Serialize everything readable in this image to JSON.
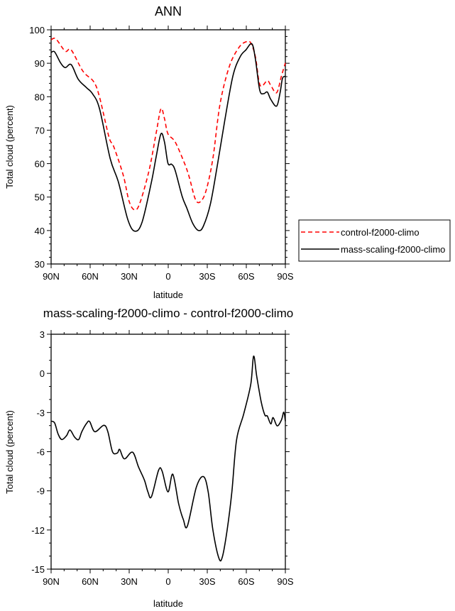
{
  "chart_data": [
    {
      "type": "line",
      "title": "ANN",
      "xlabel": "latitude",
      "ylabel": "Total cloud (percent)",
      "xlim": [
        90,
        -90
      ],
      "ylim": [
        30,
        100
      ],
      "x_ticks": [
        90,
        60,
        30,
        0,
        -30,
        -60,
        -90
      ],
      "x_tick_labels": [
        "90N",
        "60N",
        "30N",
        "0",
        "30S",
        "60S",
        "90S"
      ],
      "y_ticks": [
        30,
        40,
        50,
        60,
        70,
        80,
        90,
        100
      ],
      "y_tick_labels": [
        "30",
        "40",
        "50",
        "60",
        "70",
        "80",
        "90",
        "100"
      ],
      "grid": false,
      "legend_placement": "right",
      "series": [
        {
          "name": "control-f2000-climo",
          "color": "#ff0000",
          "dash": "dashed",
          "x": [
            90,
            86.4,
            79.1,
            74.6,
            65.5,
            57.3,
            52.8,
            45.5,
            41.9,
            34.6,
            30.1,
            25.9,
            21.9,
            14.7,
            9.2,
            5.6,
            2.9,
            0.2,
            -5.3,
            -12.5,
            -16.2,
            -20.7,
            -24.3,
            -28.9,
            -34.3,
            -39.8,
            -47.0,
            -54.3,
            -59.7,
            -63.4,
            -67.0,
            -70.6,
            -76.1,
            -78.8,
            -83.3,
            -87.0,
            -90
          ],
          "y": [
            97.0,
            97.3,
            93.6,
            94.0,
            87.6,
            84.5,
            79.9,
            67.9,
            65.1,
            56.6,
            48.8,
            46.2,
            48.1,
            58.0,
            69.3,
            76.4,
            73.5,
            68.9,
            66.5,
            60.1,
            55.9,
            49.5,
            48.5,
            51.7,
            61.5,
            77.8,
            89.1,
            94.7,
            96.4,
            96.1,
            91.9,
            83.4,
            84.8,
            83.4,
            81.2,
            86.2,
            90.1
          ]
        },
        {
          "name": "mass-scaling-f2000-climo",
          "color": "#000000",
          "dash": "solid",
          "x": [
            90,
            87.3,
            82.7,
            79.1,
            74.6,
            69.1,
            62.8,
            58.2,
            52.8,
            44.6,
            38.3,
            31.0,
            25.6,
            20.1,
            12.9,
            9.2,
            5.6,
            2.9,
            0.2,
            -2.6,
            -5.3,
            -10.7,
            -14.3,
            -18.9,
            -23.4,
            -27.1,
            -32.5,
            -38.0,
            -43.4,
            -49.7,
            -55.2,
            -59.7,
            -64.3,
            -67.0,
            -70.3,
            -73.3,
            -76.1,
            -78.8,
            -83.3,
            -86.0,
            -87.8,
            -90
          ],
          "y": [
            93.2,
            93.4,
            90.1,
            88.7,
            89.6,
            85.2,
            82.7,
            80.9,
            76.4,
            61.5,
            54.5,
            43.2,
            39.8,
            42.5,
            54.5,
            62.2,
            68.9,
            66.5,
            60.1,
            59.8,
            58.0,
            50.2,
            46.7,
            42.1,
            40.0,
            41.4,
            48.1,
            60.1,
            72.8,
            86.2,
            91.9,
            94.0,
            95.8,
            91.2,
            82.0,
            80.9,
            81.4,
            79.2,
            77.2,
            81.3,
            85.5,
            86.1
          ]
        }
      ]
    },
    {
      "type": "line",
      "title": "mass-scaling-f2000-climo - control-f2000-climo",
      "xlabel": "latitude",
      "ylabel": "Total cloud (percent)",
      "xlim": [
        90,
        -90
      ],
      "ylim": [
        -15,
        3
      ],
      "x_ticks": [
        90,
        60,
        30,
        0,
        -30,
        -60,
        -90
      ],
      "x_tick_labels": [
        "90N",
        "60N",
        "30N",
        "0",
        "30S",
        "60S",
        "90S"
      ],
      "y_ticks": [
        -15,
        -12,
        -9,
        -6,
        -3,
        0,
        3
      ],
      "y_tick_labels": [
        "-15",
        "-12",
        "-9",
        "-6",
        "-3",
        "0",
        "3"
      ],
      "grid": false,
      "series": [
        {
          "color": "#000000",
          "dash": "solid",
          "x": [
            90,
            87.3,
            84.6,
            81.8,
            78.2,
            75.5,
            71.9,
            68.8,
            66.4,
            62.8,
            60.4,
            56.4,
            49.5,
            46.4,
            42.8,
            39.1,
            37.3,
            33.7,
            27.4,
            22.8,
            18.3,
            15.6,
            12.9,
            7.4,
            4.7,
            0.2,
            -3.5,
            -8.0,
            -11.6,
            -14.7,
            -21.6,
            -27.1,
            -30.7,
            -34.3,
            -38.9,
            -41.6,
            -45.3,
            -48.9,
            -52.5,
            -58.0,
            -63.4,
            -65.6,
            -68.0,
            -71.5,
            -74.3,
            -76.1,
            -78.8,
            -80.6,
            -83.7,
            -87.0,
            -88.8,
            -90
          ],
          "y": [
            -3.66,
            -3.8,
            -4.65,
            -5.07,
            -4.78,
            -4.34,
            -4.89,
            -5.07,
            -4.47,
            -3.84,
            -3.69,
            -4.47,
            -3.98,
            -4.47,
            -6.01,
            -6.1,
            -5.83,
            -6.55,
            -6.04,
            -7.18,
            -8.18,
            -9.08,
            -9.45,
            -7.42,
            -7.49,
            -9.08,
            -7.73,
            -9.99,
            -11.2,
            -11.7,
            -8.72,
            -7.91,
            -9.08,
            -11.98,
            -14.15,
            -14.06,
            -11.98,
            -9.08,
            -5.1,
            -3.11,
            -0.85,
            1.32,
            -0.22,
            -2.21,
            -3.2,
            -3.26,
            -3.87,
            -3.39,
            -4.02,
            -3.57,
            -2.97,
            -3.66
          ]
        }
      ]
    }
  ]
}
